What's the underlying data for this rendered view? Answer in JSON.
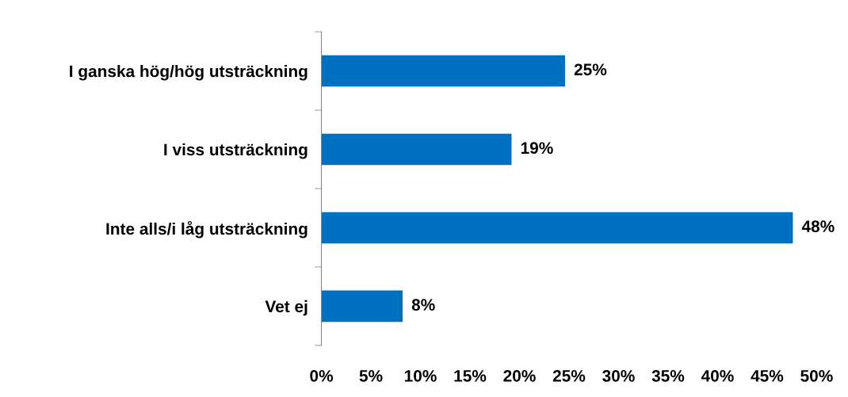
{
  "chart_data": {
    "type": "bar",
    "orientation": "horizontal",
    "categories": [
      "I ganska hög/hög utsträckning",
      "I viss utsträckning",
      "Inte alls/i låg utsträckning",
      "Vet ej"
    ],
    "values": [
      24.6,
      19.2,
      47.6,
      8.2
    ],
    "value_labels": [
      "25%",
      "19%",
      "48%",
      "8%"
    ],
    "color": "#0070c0",
    "xlim": [
      0,
      50
    ],
    "xticks": [
      {
        "value": 0,
        "label": "0%"
      },
      {
        "value": 5,
        "label": "5%"
      },
      {
        "value": 10,
        "label": "10%"
      },
      {
        "value": 15,
        "label": "15%"
      },
      {
        "value": 20,
        "label": "20%"
      },
      {
        "value": 25,
        "label": "25%"
      },
      {
        "value": 30,
        "label": "30%"
      },
      {
        "value": 35,
        "label": "35%"
      },
      {
        "value": 40,
        "label": "40%"
      },
      {
        "value": 45,
        "label": "45%"
      },
      {
        "value": 50,
        "label": "50%"
      }
    ],
    "grid": false,
    "legend": false
  }
}
